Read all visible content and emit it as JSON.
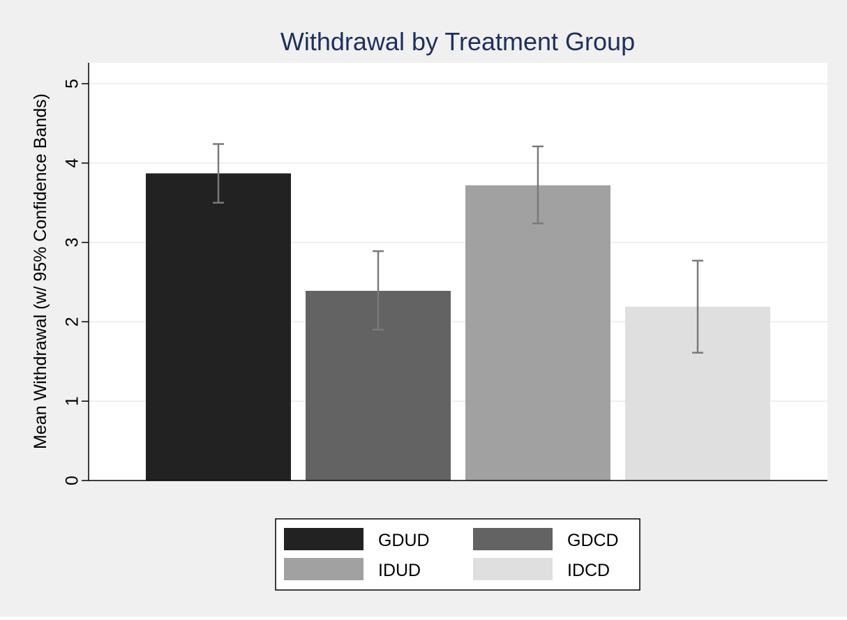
{
  "chart_data": {
    "type": "bar",
    "title": "Withdrawal by Treatment Group",
    "xlabel": "",
    "ylabel": "Mean Withdrawal (w/ 95% Confidence Bands)",
    "ylim": [
      0,
      5.2
    ],
    "yticks": [
      0,
      1,
      2,
      3,
      4,
      5
    ],
    "grid": true,
    "legend_position": "bottom",
    "series": [
      {
        "name": "GDUD",
        "value": 3.87,
        "ci_low": 3.5,
        "ci_high": 4.24,
        "color": "#222222"
      },
      {
        "name": "GDCD",
        "value": 2.39,
        "ci_low": 1.9,
        "ci_high": 2.89,
        "color": "#636363"
      },
      {
        "name": "IDUD",
        "value": 3.72,
        "ci_low": 3.24,
        "ci_high": 4.21,
        "color": "#a1a1a1"
      },
      {
        "name": "IDCD",
        "value": 2.19,
        "ci_low": 1.61,
        "ci_high": 2.77,
        "color": "#dfdfdf"
      }
    ],
    "colors": {
      "outer_background": "#f0f0f0",
      "plot_background": "#ffffff",
      "gridline": "#e4eef0",
      "title": "#1d2f5c",
      "error_bar": "#7a7a7a",
      "axis": "#000000"
    }
  }
}
